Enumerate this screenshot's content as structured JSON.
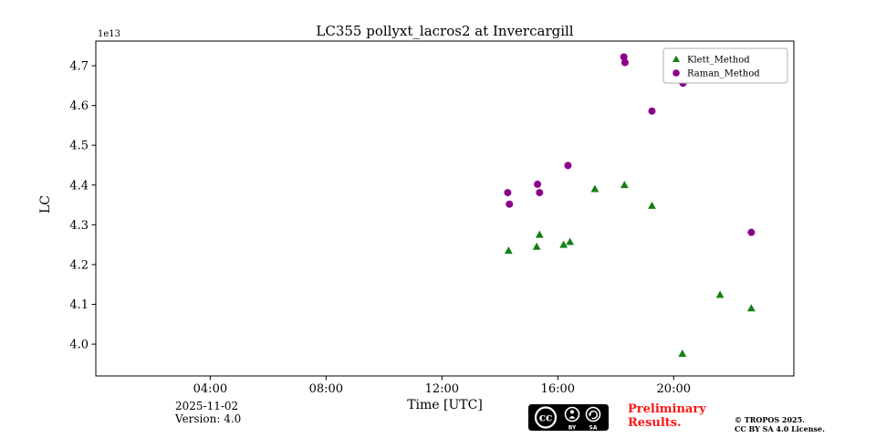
{
  "chart_data": {
    "type": "scatter",
    "title": "LC355 pollyxt_lacros2 at Invercargill",
    "xlabel": "Time [UTC]",
    "ylabel": "LC",
    "offset_text": "1e13",
    "xlim": [
      0.05,
      24.15
    ],
    "ylim": [
      3.92,
      4.762
    ],
    "grid": false,
    "legend_position": "upper right",
    "xticks": [
      {
        "value": 4,
        "label": "04:00"
      },
      {
        "value": 8,
        "label": "08:00"
      },
      {
        "value": 12,
        "label": "12:00"
      },
      {
        "value": 16,
        "label": "16:00"
      },
      {
        "value": 20,
        "label": "20:00"
      }
    ],
    "yticks": [
      {
        "value": 4.0,
        "label": "4.0"
      },
      {
        "value": 4.1,
        "label": "4.1"
      },
      {
        "value": 4.2,
        "label": "4.2"
      },
      {
        "value": 4.3,
        "label": "4.3"
      },
      {
        "value": 4.4,
        "label": "4.4"
      },
      {
        "value": 4.5,
        "label": "4.5"
      },
      {
        "value": 4.6,
        "label": "4.6"
      },
      {
        "value": 4.7,
        "label": "4.7"
      }
    ],
    "series": [
      {
        "name": "Klett_Method",
        "marker": "triangle",
        "color": "#158015",
        "points": [
          [
            14.3,
            4.235
          ],
          [
            15.27,
            4.245
          ],
          [
            15.37,
            4.275
          ],
          [
            16.2,
            4.25
          ],
          [
            16.42,
            4.257
          ],
          [
            17.28,
            4.39
          ],
          [
            18.3,
            4.4
          ],
          [
            19.25,
            4.348
          ],
          [
            20.3,
            3.976
          ],
          [
            21.6,
            4.124
          ],
          [
            22.68,
            4.09
          ]
        ]
      },
      {
        "name": "Raman_Method",
        "marker": "circle",
        "color": "#8b008b",
        "points": [
          [
            14.27,
            4.381
          ],
          [
            14.33,
            4.352
          ],
          [
            15.3,
            4.402
          ],
          [
            15.37,
            4.381
          ],
          [
            16.35,
            4.449
          ],
          [
            18.28,
            4.722
          ],
          [
            18.32,
            4.708
          ],
          [
            19.25,
            4.586
          ],
          [
            20.32,
            4.656
          ],
          [
            22.68,
            4.281
          ]
        ]
      }
    ]
  },
  "footer": {
    "date": "2025-11-02",
    "version": "Version: 4.0",
    "preliminary_line1": "Preliminary",
    "preliminary_line2": "Results.",
    "preliminary_color": "#ff1515",
    "license_line1": "© TROPOS 2025.",
    "license_line2": "CC BY SA 4.0 License.",
    "badge": {
      "cc": "cc",
      "by": "BY",
      "sa": "SA"
    }
  }
}
